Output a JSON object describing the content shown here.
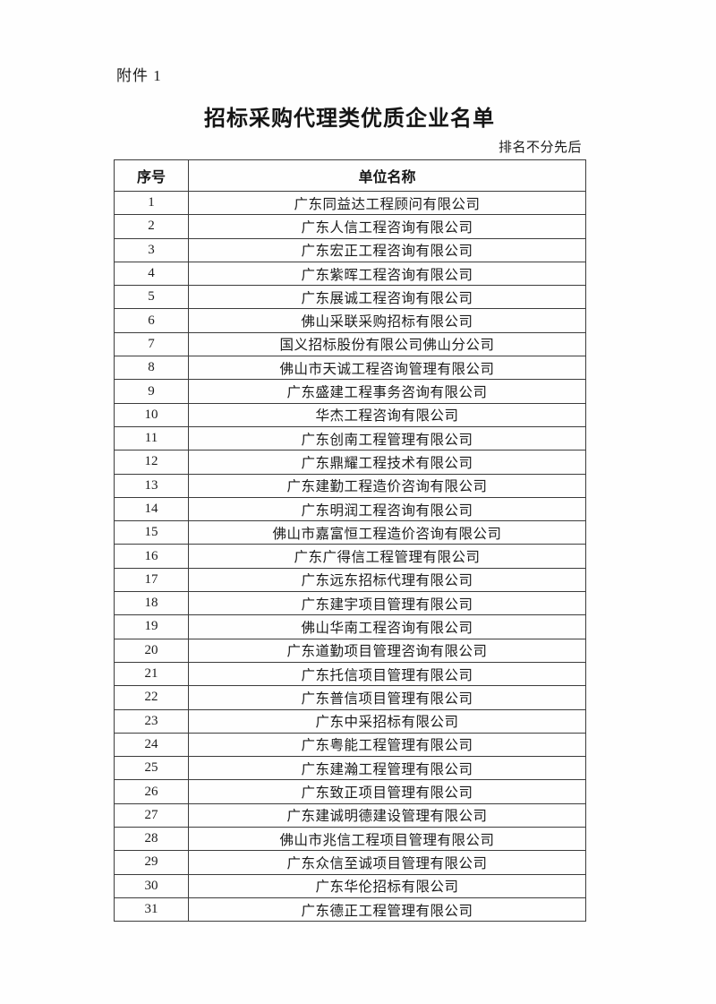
{
  "page": {
    "attachment_label": "附件 1",
    "title": "招标采购代理类优质企业名单",
    "note": "排名不分先后"
  },
  "colors": {
    "ink": "#1a1a1a",
    "table_border": "#3c3c3c",
    "paper": "#fefefe"
  },
  "table": {
    "columns": [
      "序号",
      "单位名称"
    ],
    "rows": [
      {
        "no": "1",
        "name": "广东同益达工程顾问有限公司"
      },
      {
        "no": "2",
        "name": "广东人信工程咨询有限公司"
      },
      {
        "no": "3",
        "name": "广东宏正工程咨询有限公司"
      },
      {
        "no": "4",
        "name": "广东紫晖工程咨询有限公司"
      },
      {
        "no": "5",
        "name": "广东展诚工程咨询有限公司"
      },
      {
        "no": "6",
        "name": "佛山采联采购招标有限公司"
      },
      {
        "no": "7",
        "name": "国义招标股份有限公司佛山分公司"
      },
      {
        "no": "8",
        "name": "佛山市天诚工程咨询管理有限公司"
      },
      {
        "no": "9",
        "name": "广东盛建工程事务咨询有限公司"
      },
      {
        "no": "10",
        "name": "华杰工程咨询有限公司"
      },
      {
        "no": "11",
        "name": "广东创南工程管理有限公司"
      },
      {
        "no": "12",
        "name": "广东鼎耀工程技术有限公司"
      },
      {
        "no": "13",
        "name": "广东建勤工程造价咨询有限公司"
      },
      {
        "no": "14",
        "name": "广东明润工程咨询有限公司"
      },
      {
        "no": "15",
        "name": "佛山市嘉富恒工程造价咨询有限公司"
      },
      {
        "no": "16",
        "name": "广东广得信工程管理有限公司"
      },
      {
        "no": "17",
        "name": "广东远东招标代理有限公司"
      },
      {
        "no": "18",
        "name": "广东建宇项目管理有限公司"
      },
      {
        "no": "19",
        "name": "佛山华南工程咨询有限公司"
      },
      {
        "no": "20",
        "name": "广东道勤项目管理咨询有限公司"
      },
      {
        "no": "21",
        "name": "广东托信项目管理有限公司"
      },
      {
        "no": "22",
        "name": "广东普信项目管理有限公司"
      },
      {
        "no": "23",
        "name": "广东中采招标有限公司"
      },
      {
        "no": "24",
        "name": "广东粤能工程管理有限公司"
      },
      {
        "no": "25",
        "name": "广东建瀚工程管理有限公司"
      },
      {
        "no": "26",
        "name": "广东致正项目管理有限公司"
      },
      {
        "no": "27",
        "name": "广东建诚明德建设管理有限公司"
      },
      {
        "no": "28",
        "name": "佛山市兆信工程项目管理有限公司"
      },
      {
        "no": "29",
        "name": "广东众信至诚项目管理有限公司"
      },
      {
        "no": "30",
        "name": "广东华伦招标有限公司"
      },
      {
        "no": "31",
        "name": "广东德正工程管理有限公司"
      }
    ]
  }
}
